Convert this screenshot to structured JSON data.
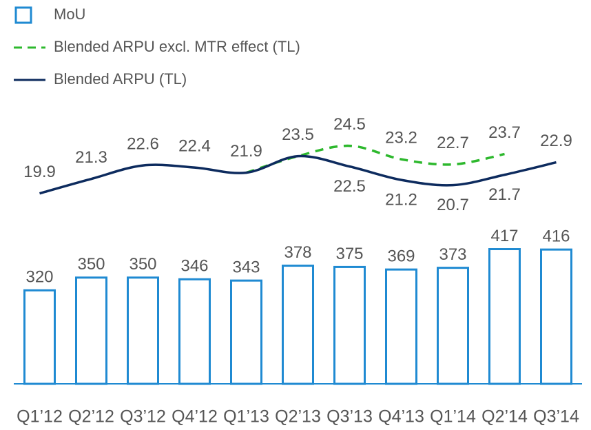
{
  "chart_data": {
    "type": "combo",
    "categories": [
      "Q1’12",
      "Q2’12",
      "Q3’12",
      "Q4’12",
      "Q1’13",
      "Q2’13",
      "Q3’13",
      "Q4’13",
      "Q1’14",
      "Q2’14",
      "Q3’14"
    ],
    "ylim": [
      100,
      760
    ],
    "y2lim": [
      1.5,
      28.6
    ],
    "series": [
      {
        "name": "MoU",
        "type": "bar",
        "color": "#1f8ad2",
        "values": [
          320,
          350,
          350,
          346,
          343,
          378,
          375,
          369,
          373,
          417,
          416
        ]
      },
      {
        "name": "Blended ARPU excl. MTR effect (TL)",
        "type": "line",
        "dashed": true,
        "axis": "y2",
        "color": "#2db82d",
        "values": [
          null,
          null,
          null,
          null,
          21.9,
          23.5,
          24.5,
          23.2,
          22.7,
          23.7,
          null
        ]
      },
      {
        "name": "Blended ARPU (TL)",
        "type": "line",
        "axis": "y2",
        "color": "#0d2b5e",
        "values": [
          19.9,
          21.3,
          22.6,
          22.4,
          21.9,
          23.5,
          22.5,
          21.2,
          20.7,
          21.7,
          22.9
        ]
      }
    ]
  }
}
